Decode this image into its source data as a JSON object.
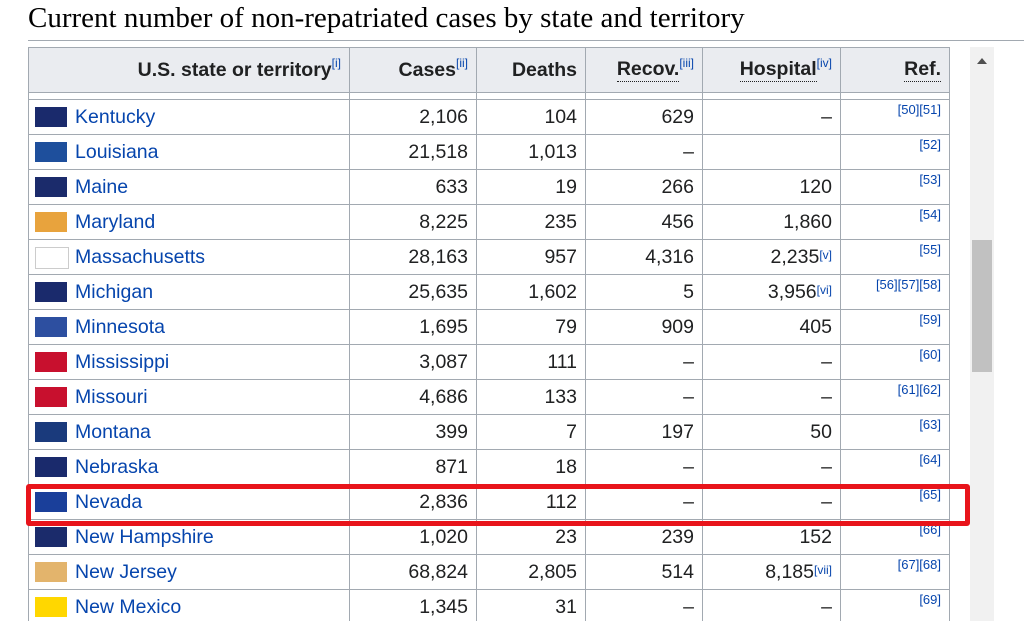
{
  "title": "Current number of non-repatriated cases by state and territory",
  "table": {
    "columns": [
      {
        "label": "U.S. state or territory",
        "note": "[i]"
      },
      {
        "label": "Cases",
        "note": "[ii]"
      },
      {
        "label": "Deaths"
      },
      {
        "label": "Recov.",
        "note": "[iii]"
      },
      {
        "label": "Hospital",
        "note": "[iv]"
      },
      {
        "label": "Ref."
      }
    ],
    "rows": [
      {
        "state": "Kentucky",
        "cases": "2,106",
        "deaths": "104",
        "recovered": "629",
        "hospital": "–",
        "refs": "[50][51]"
      },
      {
        "state": "Louisiana",
        "cases": "21,518",
        "deaths": "1,013",
        "recovered": "–",
        "hospital": null,
        "refs": "[52]"
      },
      {
        "state": "Maine",
        "cases": "633",
        "deaths": "19",
        "recovered": "266",
        "hospital": "120",
        "refs": "[53]"
      },
      {
        "state": "Maryland",
        "cases": "8,225",
        "deaths": "235",
        "recovered": "456",
        "hospital": "1,860",
        "refs": "[54]"
      },
      {
        "state": "Massachusetts",
        "cases": "28,163",
        "deaths": "957",
        "recovered": "4,316",
        "hospital": "2,235",
        "hospital_note": "[v]",
        "refs": "[55]"
      },
      {
        "state": "Michigan",
        "cases": "25,635",
        "deaths": "1,602",
        "recovered": "5",
        "hospital": "3,956",
        "hospital_note": "[vi]",
        "refs": "[56][57][58]"
      },
      {
        "state": "Minnesota",
        "cases": "1,695",
        "deaths": "79",
        "recovered": "909",
        "hospital": "405",
        "refs": "[59]"
      },
      {
        "state": "Mississippi",
        "cases": "3,087",
        "deaths": "111",
        "recovered": "–",
        "hospital": "–",
        "refs": "[60]"
      },
      {
        "state": "Missouri",
        "cases": "4,686",
        "deaths": "133",
        "recovered": "–",
        "hospital": "–",
        "refs": "[61][62]"
      },
      {
        "state": "Montana",
        "cases": "399",
        "deaths": "7",
        "recovered": "197",
        "hospital": "50",
        "refs": "[63]"
      },
      {
        "state": "Nebraska",
        "cases": "871",
        "deaths": "18",
        "recovered": "–",
        "hospital": "–",
        "refs": "[64]"
      },
      {
        "state": "Nevada",
        "cases": "2,836",
        "deaths": "112",
        "recovered": "–",
        "hospital": "–",
        "refs": "[65]"
      },
      {
        "state": "New Hampshire",
        "cases": "1,020",
        "deaths": "23",
        "recovered": "239",
        "hospital": "152",
        "refs": "[66]"
      },
      {
        "state": "New Jersey",
        "cases": "68,824",
        "deaths": "2,805",
        "recovered": "514",
        "hospital": "8,185",
        "hospital_note": "[vii]",
        "refs": "[67][68]"
      },
      {
        "state": "New Mexico",
        "cases": "1,345",
        "deaths": "31",
        "recovered": "–",
        "hospital": "–",
        "refs": "[69]"
      }
    ]
  }
}
